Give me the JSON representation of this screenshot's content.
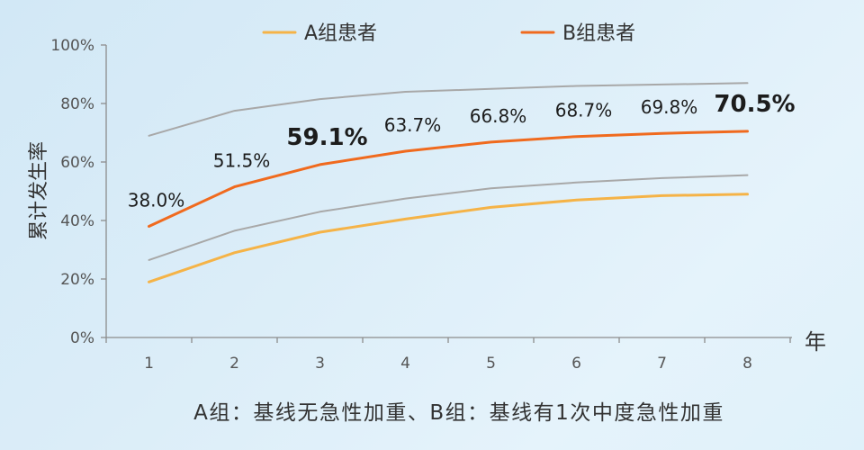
{
  "footer": {
    "note": "A组：基线无急性加重、B组：基线有1次中度急性加重"
  },
  "colors": {
    "highlight_label": "#F06A1E"
  },
  "chart_data": {
    "type": "line",
    "xlabel": "年",
    "ylabel": "累计发生率",
    "categories": [
      "1",
      "2",
      "3",
      "4",
      "5",
      "6",
      "7",
      "8"
    ],
    "ylim": [
      0,
      100
    ],
    "yticks": [
      {
        "value": 0,
        "label": "0%"
      },
      {
        "value": 20,
        "label": "20%"
      },
      {
        "value": 40,
        "label": "40%"
      },
      {
        "value": 60,
        "label": "60%"
      },
      {
        "value": 80,
        "label": "80%"
      },
      {
        "value": 100,
        "label": "100%"
      }
    ],
    "grid": false,
    "legend_position": "top",
    "series": [
      {
        "name": "A组患者",
        "color": "#F5B347",
        "values": [
          19,
          29,
          36,
          40.5,
          44.5,
          47,
          48.5,
          49
        ]
      },
      {
        "name": "B组患者",
        "color": "#F06A1E",
        "values": [
          38.0,
          51.5,
          59.1,
          63.7,
          66.8,
          68.7,
          69.8,
          70.5
        ],
        "data_labels": [
          "38.0%",
          "51.5%",
          "59.1%",
          "63.7%",
          "66.8%",
          "68.7%",
          "69.8%",
          "70.5%"
        ],
        "highlighted_labels": [
          2,
          7
        ]
      },
      {
        "color": "#A8A8A8",
        "values": [
          69,
          77.5,
          81.5,
          84,
          85,
          86,
          86.5,
          87
        ]
      },
      {
        "color": "#A8A8A8",
        "values": [
          26.5,
          36.5,
          43,
          47.5,
          51,
          53,
          54.5,
          55.5
        ]
      }
    ]
  }
}
